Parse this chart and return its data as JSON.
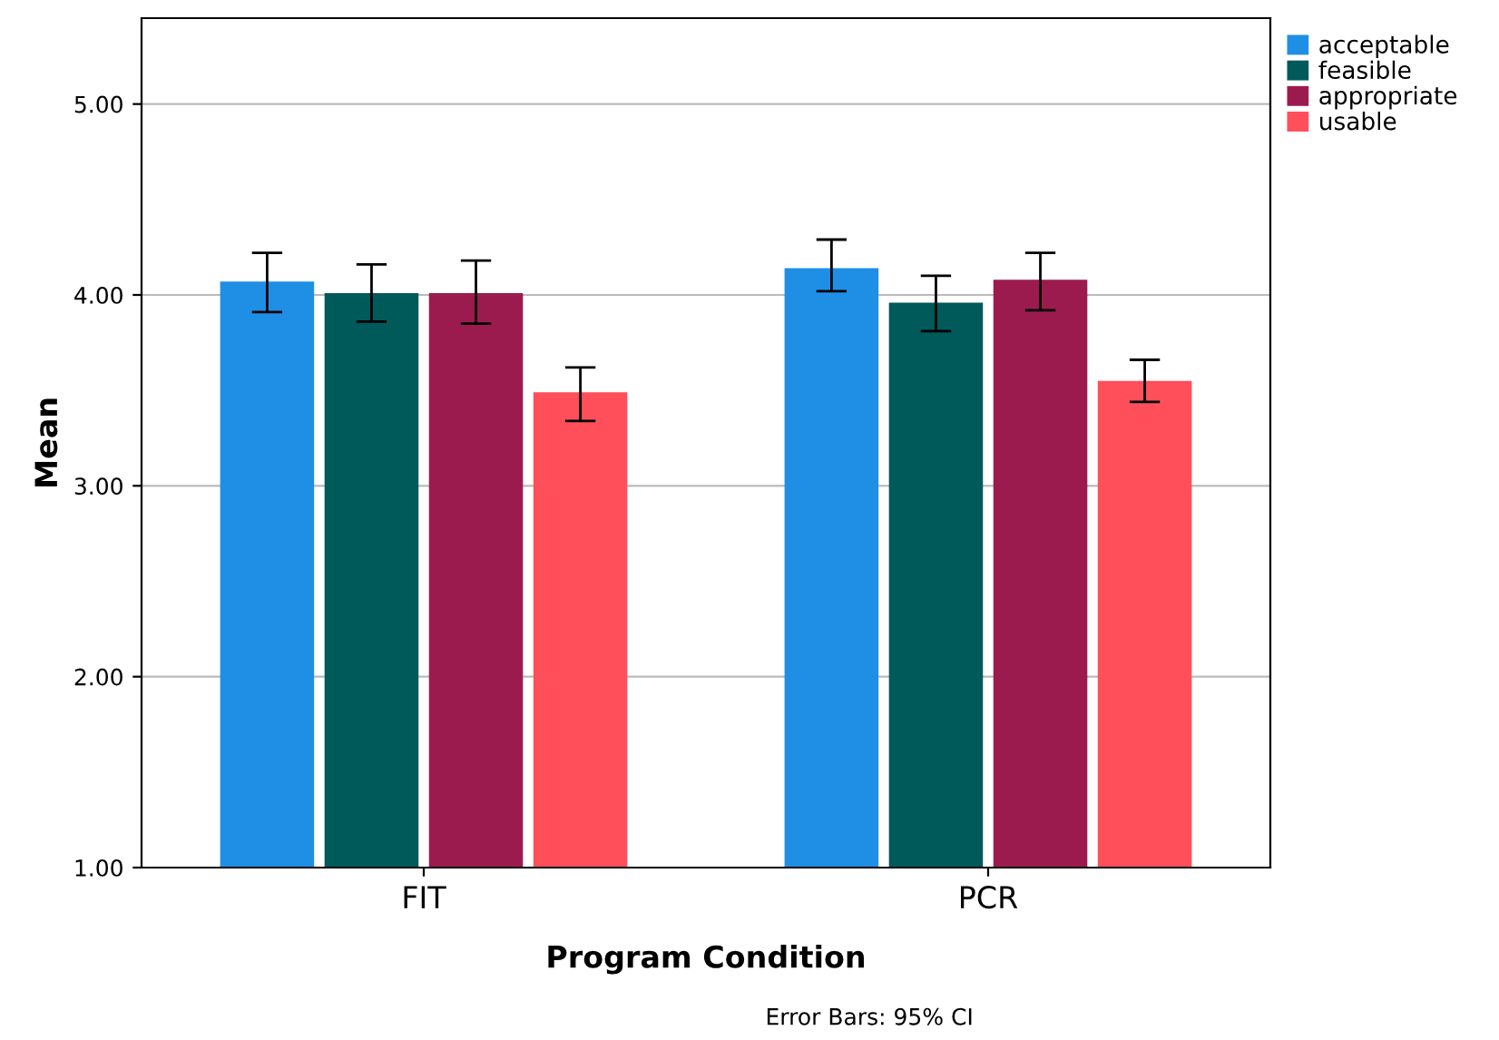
{
  "chart_data": {
    "type": "bar",
    "xlabel": "Program Condition",
    "ylabel": "Mean",
    "categories": [
      "FIT",
      "PCR"
    ],
    "series": [
      {
        "name": "acceptable",
        "color": "#1f8fe6",
        "values": [
          4.07,
          4.14
        ],
        "errors": [
          [
            3.91,
            4.22
          ],
          [
            4.02,
            4.29
          ]
        ]
      },
      {
        "name": "feasible",
        "color": "#005a5a",
        "values": [
          4.01,
          3.96
        ],
        "errors": [
          [
            3.86,
            4.16
          ],
          [
            3.81,
            4.1
          ]
        ]
      },
      {
        "name": "appropriate",
        "color": "#9b1b4f",
        "values": [
          4.01,
          4.08
        ],
        "errors": [
          [
            3.85,
            4.18
          ],
          [
            3.92,
            4.22
          ]
        ]
      },
      {
        "name": "usable",
        "color": "#ff4f5a",
        "values": [
          3.49,
          3.55
        ],
        "errors": [
          [
            3.34,
            3.62
          ],
          [
            3.44,
            3.66
          ]
        ]
      }
    ],
    "ylim": [
      1,
      5.45
    ],
    "yticks": [
      {
        "value": 1,
        "label": "1.00"
      },
      {
        "value": 2,
        "label": "2.00"
      },
      {
        "value": 3,
        "label": "3.00"
      },
      {
        "value": 4,
        "label": "4.00"
      },
      {
        "value": 5,
        "label": "5.00"
      }
    ],
    "grid": "y",
    "legend": "top right",
    "annotations": [
      "Error Bars: 95% CI"
    ]
  }
}
